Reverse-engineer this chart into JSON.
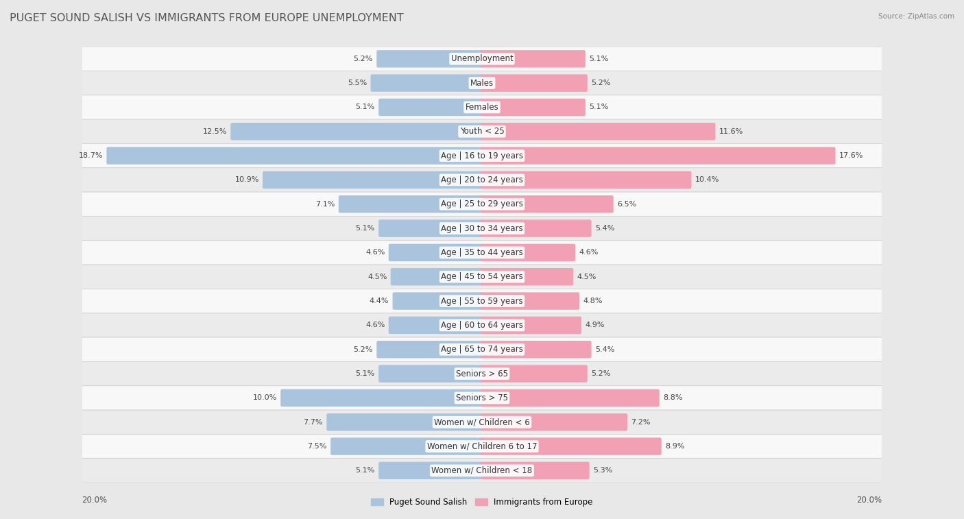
{
  "title": "PUGET SOUND SALISH VS IMMIGRANTS FROM EUROPE UNEMPLOYMENT",
  "source": "Source: ZipAtlas.com",
  "categories": [
    "Unemployment",
    "Males",
    "Females",
    "Youth < 25",
    "Age | 16 to 19 years",
    "Age | 20 to 24 years",
    "Age | 25 to 29 years",
    "Age | 30 to 34 years",
    "Age | 35 to 44 years",
    "Age | 45 to 54 years",
    "Age | 55 to 59 years",
    "Age | 60 to 64 years",
    "Age | 65 to 74 years",
    "Seniors > 65",
    "Seniors > 75",
    "Women w/ Children < 6",
    "Women w/ Children 6 to 17",
    "Women w/ Children < 18"
  ],
  "left_values": [
    5.2,
    5.5,
    5.1,
    12.5,
    18.7,
    10.9,
    7.1,
    5.1,
    4.6,
    4.5,
    4.4,
    4.6,
    5.2,
    5.1,
    10.0,
    7.7,
    7.5,
    5.1
  ],
  "right_values": [
    5.1,
    5.2,
    5.1,
    11.6,
    17.6,
    10.4,
    6.5,
    5.4,
    4.6,
    4.5,
    4.8,
    4.9,
    5.4,
    5.2,
    8.8,
    7.2,
    8.9,
    5.3
  ],
  "left_color": "#aac4de",
  "right_color": "#f2a0b4",
  "label_left": "Puget Sound Salish",
  "label_right": "Immigrants from Europe",
  "axis_max": 20.0,
  "bg_color": "#e8e8e8",
  "row_bg_even": "#f8f8f8",
  "row_bg_odd": "#ebebeb",
  "title_fontsize": 11.5,
  "label_fontsize": 8.5,
  "value_fontsize": 8,
  "axis_label_fontsize": 8.5
}
